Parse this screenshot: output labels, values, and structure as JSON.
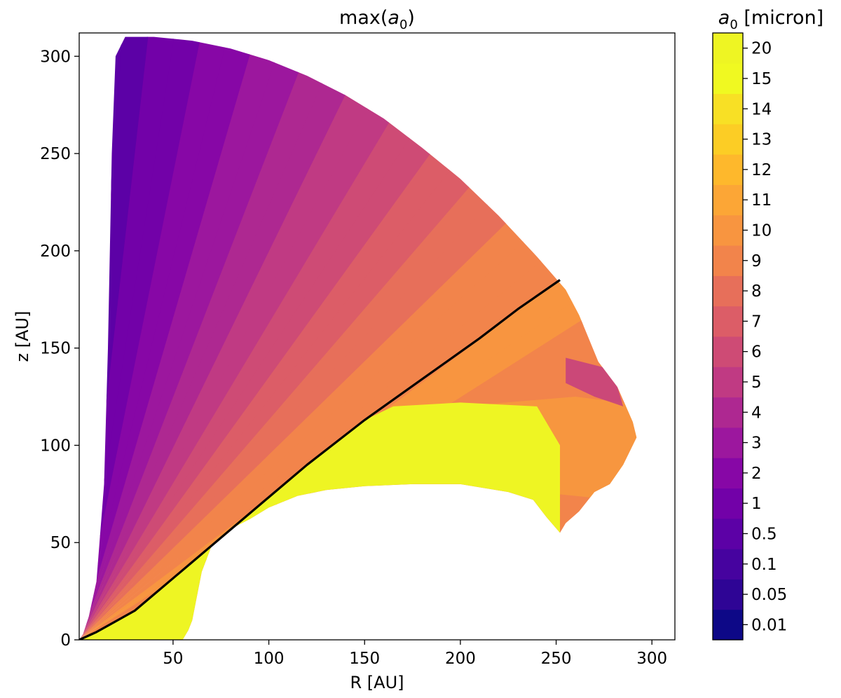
{
  "chart_data": {
    "type": "heatmap",
    "title": "max(a₀)",
    "title_parts": {
      "prefix": "max(",
      "var": "a",
      "sub": "0",
      "suffix": ")"
    },
    "xlabel": "R [AU]",
    "ylabel": "z [AU]",
    "xlim": [
      1,
      312
    ],
    "ylim": [
      0,
      312
    ],
    "xticks": [
      50,
      100,
      150,
      200,
      250,
      300
    ],
    "yticks": [
      0,
      50,
      100,
      150,
      200,
      250,
      300
    ],
    "colorbar": {
      "label": "a₀ [micron]",
      "label_parts": {
        "var": "a",
        "sub": "0",
        "rest": " [micron]"
      },
      "levels": [
        "0.01",
        "0.05",
        "0.1",
        "0.5",
        "1",
        "2",
        "3",
        "4",
        "5",
        "6",
        "7",
        "8",
        "9",
        "10",
        "11",
        "12",
        "13",
        "14",
        "15",
        "20"
      ],
      "colors": [
        "#0d0887",
        "#2e0595",
        "#46039f",
        "#5c01a6",
        "#7201a8",
        "#8707a6",
        "#9c179e",
        "#ae2891",
        "#c03a83",
        "#ce4b75",
        "#dc5d67",
        "#e76f5a",
        "#f2844b",
        "#f89540",
        "#fca636",
        "#feb82c",
        "#fccd25",
        "#f8e025",
        "#f0f921",
        "#eef523"
      ]
    },
    "region": {
      "outer_boundary": [
        [
          1,
          0
        ],
        [
          3,
          3
        ],
        [
          6,
          12
        ],
        [
          10,
          30
        ],
        [
          14,
          80
        ],
        [
          16,
          150
        ],
        [
          18,
          250
        ],
        [
          20,
          300
        ],
        [
          25,
          310
        ],
        [
          40,
          310
        ],
        [
          60,
          308
        ],
        [
          80,
          304
        ],
        [
          100,
          298
        ],
        [
          120,
          290
        ],
        [
          140,
          280
        ],
        [
          160,
          268
        ],
        [
          180,
          253
        ],
        [
          200,
          237
        ],
        [
          220,
          218
        ],
        [
          240,
          197
        ],
        [
          255,
          180
        ],
        [
          262,
          167
        ],
        [
          272,
          143
        ],
        [
          282,
          130
        ],
        [
          290,
          112
        ],
        [
          292,
          104
        ],
        [
          285,
          90
        ],
        [
          278,
          80
        ],
        [
          270,
          76
        ],
        [
          262,
          66
        ],
        [
          255,
          60
        ],
        [
          252,
          55
        ]
      ],
      "yellow_lower_boundary": [
        [
          252,
          55
        ],
        [
          245,
          63
        ],
        [
          238,
          72
        ],
        [
          225,
          76
        ],
        [
          200,
          80
        ],
        [
          175,
          80
        ],
        [
          150,
          79
        ],
        [
          130,
          77
        ],
        [
          115,
          74
        ],
        [
          100,
          68
        ],
        [
          90,
          62
        ],
        [
          80,
          57
        ],
        [
          70,
          48
        ],
        [
          65,
          35
        ],
        [
          62,
          20
        ],
        [
          60,
          10
        ],
        [
          58,
          5
        ],
        [
          55,
          0
        ]
      ]
    },
    "lines": [
      {
        "points": [
          [
            1,
            0
          ],
          [
            10,
            4
          ],
          [
            30,
            15
          ],
          [
            60,
            40
          ],
          [
            90,
            65
          ],
          [
            120,
            90
          ],
          [
            150,
            113
          ],
          [
            180,
            134
          ],
          [
            210,
            155
          ],
          [
            230,
            170
          ],
          [
            252,
            185
          ]
        ],
        "color": "#000000"
      }
    ]
  }
}
